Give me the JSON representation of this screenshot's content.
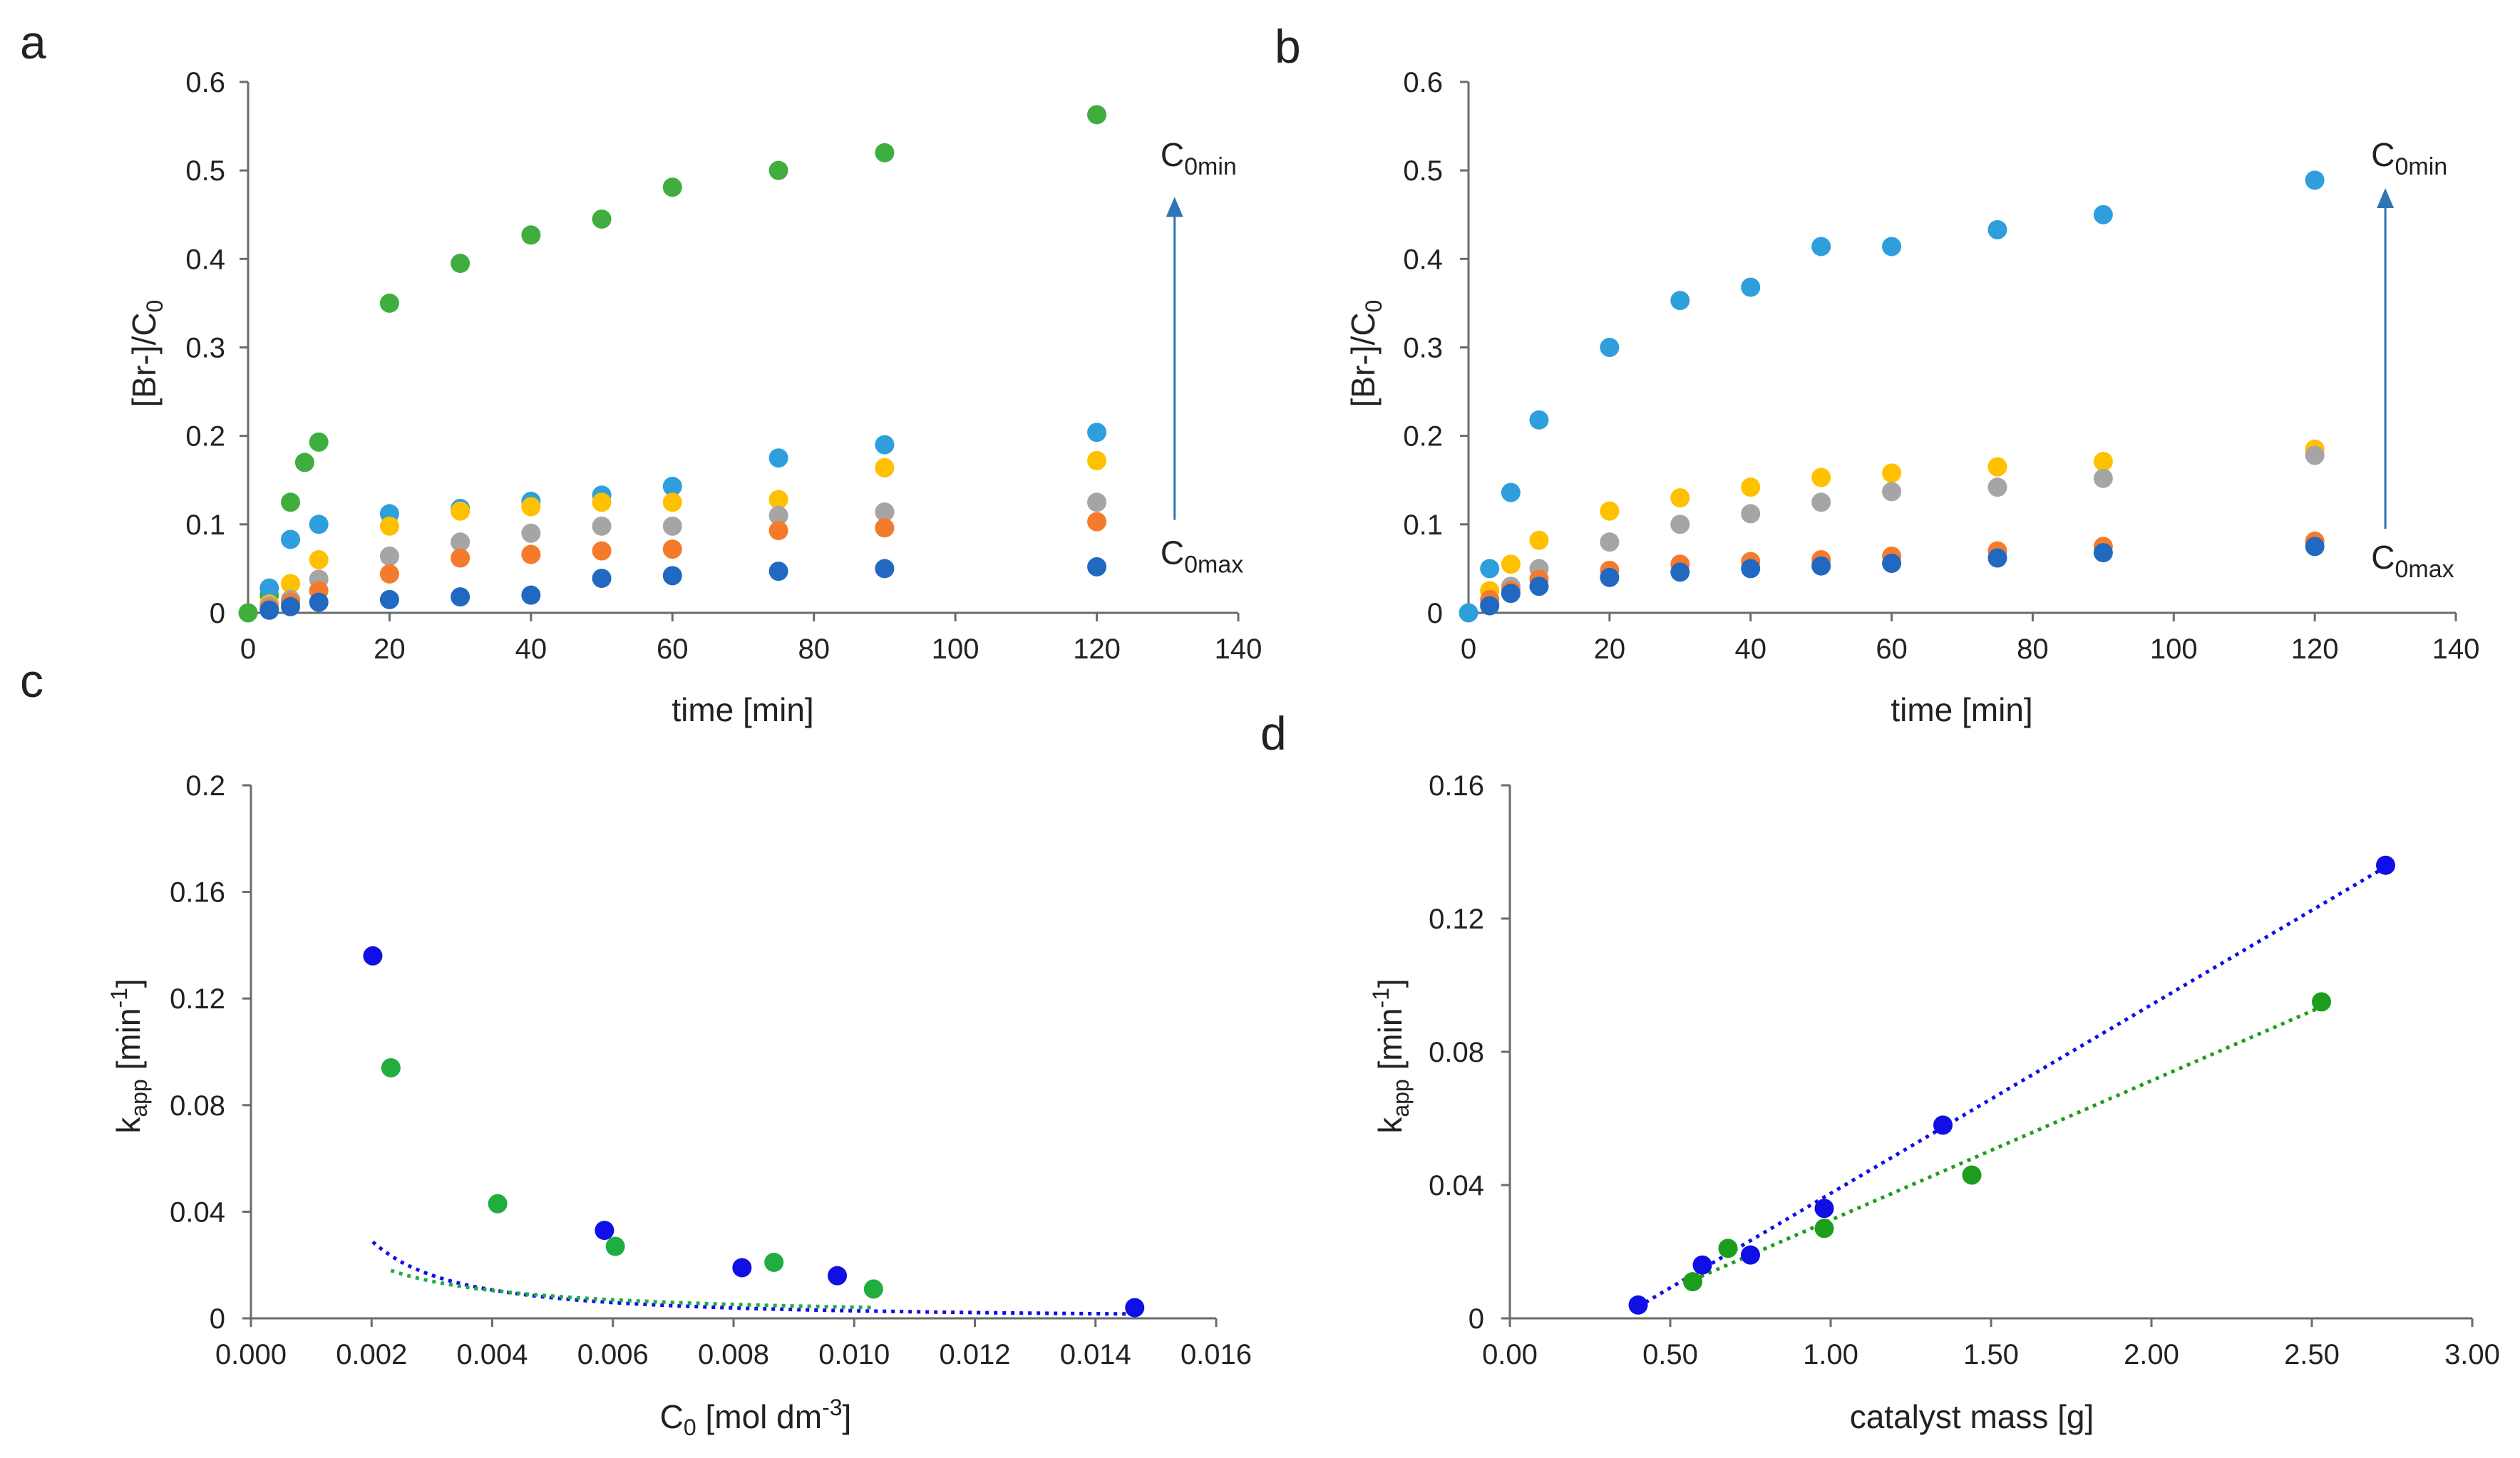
{
  "figure": {
    "panel_labels": [
      "a",
      "b",
      "c",
      "d"
    ]
  },
  "chart_data": [
    {
      "id": "a",
      "type": "scatter",
      "title": "",
      "xlabel": "time [min]",
      "ylabel": "[Br-]/C0",
      "ylabel_main": "[Br-]/C",
      "ylabel_sub": "0",
      "xlim": [
        0,
        140
      ],
      "ylim": [
        0,
        0.6
      ],
      "xticks": [
        "0",
        "20",
        "40",
        "60",
        "80",
        "100",
        "120",
        "140"
      ],
      "yticks": [
        "0",
        "0.1",
        "0.2",
        "0.3",
        "0.4",
        "0.5",
        "0.6"
      ],
      "grid": false,
      "annotations": {
        "arrow": {
          "x": 131,
          "y_from": 0.105,
          "y_to": 0.47,
          "color": "#2e75b6"
        },
        "top_label": {
          "main": "C",
          "sub": "0min",
          "x": 129,
          "y": 0.505
        },
        "bottom_label": {
          "main": "C",
          "sub": "0max",
          "x": 129,
          "y": 0.055
        }
      },
      "x": [
        0,
        3,
        6,
        8,
        10,
        20,
        30,
        40,
        50,
        60,
        75,
        90,
        120
      ],
      "series": [
        {
          "name": "green",
          "color": "#3fae3f",
          "points": [
            [
              0,
              0
            ],
            [
              3,
              0.02
            ],
            [
              6,
              0.125
            ],
            [
              8,
              0.17
            ],
            [
              10,
              0.193
            ],
            [
              20,
              0.35
            ],
            [
              30,
              0.395
            ],
            [
              40,
              0.427
            ],
            [
              50,
              0.445
            ],
            [
              60,
              0.481
            ],
            [
              75,
              0.5
            ],
            [
              90,
              0.52
            ],
            [
              120,
              0.563
            ]
          ]
        },
        {
          "name": "light-blue",
          "color": "#2e9fdc",
          "points": [
            [
              3,
              0.028
            ],
            [
              6,
              0.083
            ],
            [
              10,
              0.1
            ],
            [
              20,
              0.112
            ],
            [
              30,
              0.118
            ],
            [
              40,
              0.126
            ],
            [
              50,
              0.133
            ],
            [
              60,
              0.143
            ],
            [
              75,
              0.175
            ],
            [
              90,
              0.19
            ],
            [
              120,
              0.204
            ]
          ]
        },
        {
          "name": "yellow",
          "color": "#ffc000",
          "points": [
            [
              3,
              0.01
            ],
            [
              6,
              0.033
            ],
            [
              10,
              0.06
            ],
            [
              20,
              0.098
            ],
            [
              30,
              0.115
            ],
            [
              40,
              0.12
            ],
            [
              50,
              0.125
            ],
            [
              60,
              0.125
            ],
            [
              75,
              0.128
            ],
            [
              90,
              0.164
            ],
            [
              120,
              0.172
            ]
          ]
        },
        {
          "name": "gray",
          "color": "#a5a5a5",
          "points": [
            [
              3,
              0.008
            ],
            [
              6,
              0.015
            ],
            [
              10,
              0.038
            ],
            [
              20,
              0.064
            ],
            [
              30,
              0.08
            ],
            [
              40,
              0.09
            ],
            [
              50,
              0.098
            ],
            [
              60,
              0.098
            ],
            [
              75,
              0.11
            ],
            [
              90,
              0.114
            ],
            [
              120,
              0.125
            ]
          ]
        },
        {
          "name": "orange",
          "color": "#f47b2c",
          "points": [
            [
              3,
              0.005
            ],
            [
              6,
              0.012
            ],
            [
              10,
              0.025
            ],
            [
              20,
              0.044
            ],
            [
              30,
              0.062
            ],
            [
              40,
              0.066
            ],
            [
              50,
              0.07
            ],
            [
              60,
              0.072
            ],
            [
              75,
              0.093
            ],
            [
              90,
              0.096
            ],
            [
              120,
              0.103
            ]
          ]
        },
        {
          "name": "dark-blue",
          "color": "#2169c0",
          "points": [
            [
              3,
              0.003
            ],
            [
              6,
              0.007
            ],
            [
              10,
              0.012
            ],
            [
              20,
              0.015
            ],
            [
              30,
              0.018
            ],
            [
              40,
              0.02
            ],
            [
              50,
              0.039
            ],
            [
              60,
              0.042
            ],
            [
              75,
              0.047
            ],
            [
              90,
              0.05
            ],
            [
              120,
              0.052
            ]
          ]
        }
      ]
    },
    {
      "id": "b",
      "type": "scatter",
      "title": "",
      "xlabel": "time [min]",
      "ylabel": "[Br-]/C0",
      "ylabel_main": "[Br-]/C",
      "ylabel_sub": "0",
      "xlim": [
        0,
        140
      ],
      "ylim": [
        0,
        0.6
      ],
      "xticks": [
        "0",
        "20",
        "40",
        "60",
        "80",
        "100",
        "120",
        "140"
      ],
      "yticks": [
        "0",
        "0.1",
        "0.2",
        "0.3",
        "0.4",
        "0.5",
        "0.6"
      ],
      "grid": false,
      "annotations": {
        "arrow": {
          "x": 130,
          "y_from": 0.095,
          "y_to": 0.48,
          "color": "#2e75b6"
        },
        "top_label": {
          "main": "C",
          "sub": "0min",
          "x": 128,
          "y": 0.505
        },
        "bottom_label": {
          "main": "C",
          "sub": "0max",
          "x": 128,
          "y": 0.05
        }
      },
      "x": [
        0,
        3,
        6,
        10,
        20,
        30,
        40,
        50,
        60,
        75,
        90,
        120
      ],
      "series": [
        {
          "name": "light-blue",
          "color": "#2e9fdc",
          "points": [
            [
              0,
              0
            ],
            [
              3,
              0.05
            ],
            [
              6,
              0.136
            ],
            [
              10,
              0.218
            ],
            [
              20,
              0.3
            ],
            [
              30,
              0.353
            ],
            [
              40,
              0.368
            ],
            [
              50,
              0.414
            ],
            [
              60,
              0.414
            ],
            [
              75,
              0.433
            ],
            [
              90,
              0.45
            ],
            [
              120,
              0.489
            ]
          ]
        },
        {
          "name": "yellow",
          "color": "#ffc000",
          "points": [
            [
              3,
              0.025
            ],
            [
              6,
              0.055
            ],
            [
              10,
              0.082
            ],
            [
              20,
              0.115
            ],
            [
              30,
              0.13
            ],
            [
              40,
              0.142
            ],
            [
              50,
              0.153
            ],
            [
              60,
              0.158
            ],
            [
              75,
              0.165
            ],
            [
              90,
              0.171
            ],
            [
              120,
              0.185
            ]
          ]
        },
        {
          "name": "gray",
          "color": "#a5a5a5",
          "points": [
            [
              3,
              0.01
            ],
            [
              6,
              0.03
            ],
            [
              10,
              0.05
            ],
            [
              20,
              0.08
            ],
            [
              30,
              0.1
            ],
            [
              40,
              0.112
            ],
            [
              50,
              0.125
            ],
            [
              60,
              0.137
            ],
            [
              75,
              0.142
            ],
            [
              90,
              0.152
            ],
            [
              120,
              0.178
            ]
          ]
        },
        {
          "name": "orange",
          "color": "#f47b2c",
          "points": [
            [
              3,
              0.015
            ],
            [
              6,
              0.025
            ],
            [
              10,
              0.038
            ],
            [
              20,
              0.048
            ],
            [
              30,
              0.055
            ],
            [
              40,
              0.058
            ],
            [
              50,
              0.06
            ],
            [
              60,
              0.064
            ],
            [
              75,
              0.07
            ],
            [
              90,
              0.075
            ],
            [
              120,
              0.081
            ]
          ]
        },
        {
          "name": "dark-blue",
          "color": "#2169c0",
          "points": [
            [
              3,
              0.008
            ],
            [
              6,
              0.022
            ],
            [
              10,
              0.03
            ],
            [
              20,
              0.04
            ],
            [
              30,
              0.046
            ],
            [
              40,
              0.05
            ],
            [
              50,
              0.053
            ],
            [
              60,
              0.056
            ],
            [
              75,
              0.062
            ],
            [
              90,
              0.068
            ],
            [
              120,
              0.075
            ]
          ]
        }
      ]
    },
    {
      "id": "c",
      "type": "scatter",
      "title": "",
      "xlabel": "C0 [mol dm-3]",
      "xlabel_parts": {
        "a": "C",
        "sub": "0",
        "b": " [mol dm",
        "sup": "-3",
        "c": "]"
      },
      "ylabel": "kapp [min-1]",
      "ylabel_parts": {
        "a": "k",
        "sub": "app",
        "b": " [min",
        "sup": "-1",
        "c": "]"
      },
      "xlim": [
        0,
        0.016
      ],
      "ylim": [
        0,
        0.2
      ],
      "xticks": [
        "0.000",
        "0.002",
        "0.004",
        "0.006",
        "0.008",
        "0.010",
        "0.012",
        "0.014",
        "0.016"
      ],
      "yticks": [
        "0",
        "0.04",
        "0.08",
        "0.12",
        "0.16",
        "0.2"
      ],
      "grid": false,
      "series": [
        {
          "name": "blue",
          "color": "#0f0fe6",
          "points": [
            [
              0.00202,
              0.136
            ],
            [
              0.00586,
              0.033
            ],
            [
              0.00814,
              0.019
            ],
            [
              0.00972,
              0.016
            ],
            [
              0.01465,
              0.004
            ]
          ],
          "trend": {
            "kind": "power",
            "a": 3.55e-06,
            "b": -1.45,
            "x_from": 0.00202,
            "x_to": 0.01465
          }
        },
        {
          "name": "green",
          "color": "#1fae3f",
          "points": [
            [
              0.00232,
              0.094
            ],
            [
              0.00409,
              0.043
            ],
            [
              0.00604,
              0.027
            ],
            [
              0.00867,
              0.021
            ],
            [
              0.01032,
              0.011
            ]
          ],
          "trend": {
            "kind": "power",
            "a": 4.24e-05,
            "b": -0.997,
            "x_from": 0.00232,
            "x_to": 0.01032
          }
        }
      ]
    },
    {
      "id": "d",
      "type": "scatter",
      "title": "",
      "xlabel": "catalyst mass [g]",
      "ylabel": "kapp [min-1]",
      "ylabel_parts": {
        "a": "k",
        "sub": "app",
        "b": " [min",
        "sup": "-1",
        "c": "]"
      },
      "xlim": [
        0,
        3
      ],
      "ylim": [
        0,
        0.16
      ],
      "xticks": [
        "0.00",
        "0.50",
        "1.00",
        "1.50",
        "2.00",
        "2.50",
        "3.00"
      ],
      "yticks": [
        "0",
        "0.04",
        "0.08",
        "0.12",
        "0.16"
      ],
      "grid": false,
      "series": [
        {
          "name": "blue",
          "color": "#0f0fe6",
          "points": [
            [
              0.4,
              0.004
            ],
            [
              0.6,
              0.016
            ],
            [
              0.75,
              0.019
            ],
            [
              0.98,
              0.033
            ],
            [
              1.35,
              0.058
            ],
            [
              2.73,
              0.136
            ]
          ],
          "trend": {
            "kind": "linear",
            "x_from": 0.4,
            "x_to": 2.73,
            "y_from": 0.0035,
            "y_to": 0.1355
          }
        },
        {
          "name": "green",
          "color": "#1c9e1c",
          "points": [
            [
              0.57,
              0.011
            ],
            [
              0.68,
              0.021
            ],
            [
              0.98,
              0.027
            ],
            [
              1.44,
              0.043
            ],
            [
              2.53,
              0.095
            ]
          ],
          "trend": {
            "kind": "linear",
            "x_from": 0.57,
            "x_to": 2.53,
            "y_from": 0.0115,
            "y_to": 0.0935
          }
        }
      ]
    }
  ]
}
